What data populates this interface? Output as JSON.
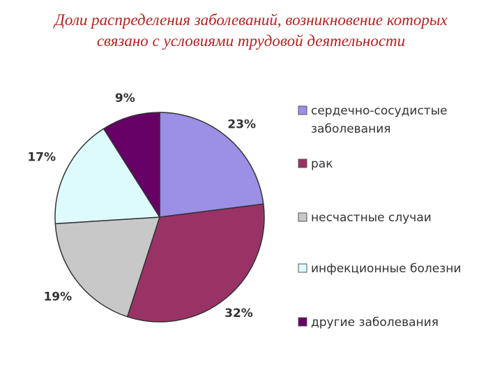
{
  "title": {
    "line1": "Доли распределения заболеваний, возникновение которых",
    "line2": "связано с условиями трудовой деятельности"
  },
  "chart_data": {
    "type": "pie",
    "categories": [
      "сердечно-сосудистые заболевания",
      "рак",
      "несчастные случаи",
      "инфекционные болезни",
      "другие заболевания"
    ],
    "values": [
      23,
      32,
      19,
      17,
      9
    ],
    "data_labels": [
      "23%",
      "32%",
      "19%",
      "17%",
      "9%"
    ],
    "legend_lines": [
      [
        "сердечно-сосудистые",
        "заболевания"
      ],
      [
        "рак"
      ],
      [
        "несчастные случаи"
      ],
      [
        "инфекционные болезни"
      ],
      [
        "другие заболевания"
      ]
    ],
    "colors": [
      "#9b8fe6",
      "#993366",
      "#c8c8c8",
      "#ddfbfd",
      "#660066"
    ],
    "legend_position": "right"
  }
}
